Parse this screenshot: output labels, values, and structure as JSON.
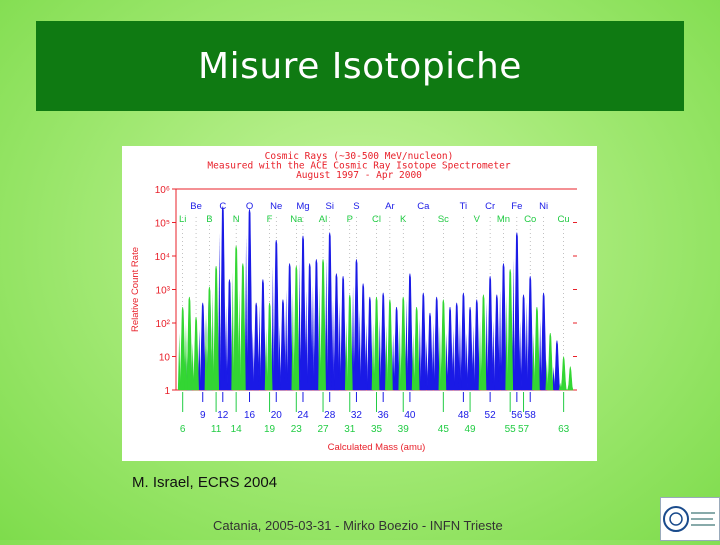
{
  "slide": {
    "title": "Misure Isotopiche",
    "caption": "M. Israel, ECRS 2004",
    "footer": "Catania, 2005-03-31 - Mirko Boezio - INFN Trieste",
    "logo_text": "INFN"
  },
  "colors": {
    "title_bg": "#0f7a12",
    "slide_bg": "#a6ea78",
    "plot_red": "#e8202a",
    "series_blue": "#1a1ae6",
    "series_green": "#33d633",
    "tick_blue": "#1a1ae6",
    "tick_green": "#22cc44"
  },
  "chart_data": {
    "type": "area",
    "title": [
      "Cosmic Rays (~30-500 MeV/nucleon)",
      "Measured with the ACE Cosmic Ray Isotope Spectrometer",
      "August 1997 - Apr 2000"
    ],
    "xlabel": "Calculated Mass (amu)",
    "ylabel": "Relative Count Rate",
    "xlim": [
      5,
      65
    ],
    "ylim": [
      1,
      1000000
    ],
    "yscale": "log",
    "y_ticks": [
      {
        "value": 1,
        "label": "1"
      },
      {
        "value": 10,
        "label": "10"
      },
      {
        "value": 100,
        "label": "10²"
      },
      {
        "value": 1000,
        "label": "10³"
      },
      {
        "value": 10000,
        "label": "10⁴"
      },
      {
        "value": 100000,
        "label": "10⁵"
      },
      {
        "value": 1000000,
        "label": "10⁶"
      }
    ],
    "element_labels_top": [
      {
        "symbol": "Be",
        "mass": 8
      },
      {
        "symbol": "C",
        "mass": 12
      },
      {
        "symbol": "O",
        "mass": 16
      },
      {
        "symbol": "Ne",
        "mass": 20
      },
      {
        "symbol": "Mg",
        "mass": 24
      },
      {
        "symbol": "Si",
        "mass": 28
      },
      {
        "symbol": "S",
        "mass": 32
      },
      {
        "symbol": "Ar",
        "mass": 37
      },
      {
        "symbol": "Ca",
        "mass": 42
      },
      {
        "symbol": "Ti",
        "mass": 48
      },
      {
        "symbol": "Cr",
        "mass": 52
      },
      {
        "symbol": "Fe",
        "mass": 56
      },
      {
        "symbol": "Ni",
        "mass": 60
      }
    ],
    "element_labels_bottom": [
      {
        "symbol": "Li",
        "mass": 6
      },
      {
        "symbol": "B",
        "mass": 10
      },
      {
        "symbol": "N",
        "mass": 14
      },
      {
        "symbol": "F",
        "mass": 19
      },
      {
        "symbol": "Na",
        "mass": 23
      },
      {
        "symbol": "Al",
        "mass": 27
      },
      {
        "symbol": "P",
        "mass": 31
      },
      {
        "symbol": "Cl",
        "mass": 35
      },
      {
        "symbol": "K",
        "mass": 39
      },
      {
        "symbol": "Sc",
        "mass": 45
      },
      {
        "symbol": "V",
        "mass": 50
      },
      {
        "symbol": "Mn",
        "mass": 54
      },
      {
        "symbol": "Co",
        "mass": 58
      },
      {
        "symbol": "Cu",
        "mass": 63
      }
    ],
    "mass_labels_top": [
      "9",
      "12",
      "16",
      "20",
      "24",
      "28",
      "32",
      "36",
      "40",
      "48",
      "52",
      "56",
      "58"
    ],
    "mass_labels_top_positions": [
      9,
      12,
      16,
      20,
      24,
      28,
      32,
      36,
      40,
      48,
      52,
      56,
      58
    ],
    "mass_labels_bottom": [
      "6",
      "11",
      "14",
      "19",
      "23",
      "27",
      "31",
      "35",
      "39",
      "45",
      "49",
      "55",
      "57",
      "63"
    ],
    "mass_labels_bottom_positions": [
      6,
      11,
      14,
      19,
      23,
      27,
      31,
      35,
      39,
      45,
      49,
      55,
      57,
      63
    ],
    "series": [
      {
        "color": "blue",
        "peaks": [
          {
            "mass": 7,
            "value": 200
          },
          {
            "mass": 9,
            "value": 400
          },
          {
            "mass": 10,
            "value": 800
          },
          {
            "mass": 12,
            "value": 300000
          },
          {
            "mass": 13,
            "value": 2000
          },
          {
            "mass": 16,
            "value": 250000
          },
          {
            "mass": 17,
            "value": 400
          },
          {
            "mass": 18,
            "value": 2000
          },
          {
            "mass": 20,
            "value": 30000
          },
          {
            "mass": 21,
            "value": 500
          },
          {
            "mass": 22,
            "value": 6000
          },
          {
            "mass": 24,
            "value": 40000
          },
          {
            "mass": 25,
            "value": 6000
          },
          {
            "mass": 26,
            "value": 8000
          },
          {
            "mass": 28,
            "value": 50000
          },
          {
            "mass": 29,
            "value": 3000
          },
          {
            "mass": 30,
            "value": 2500
          },
          {
            "mass": 32,
            "value": 8000
          },
          {
            "mass": 33,
            "value": 1500
          },
          {
            "mass": 34,
            "value": 600
          },
          {
            "mass": 36,
            "value": 800
          },
          {
            "mass": 38,
            "value": 300
          },
          {
            "mass": 40,
            "value": 3000
          },
          {
            "mass": 42,
            "value": 800
          },
          {
            "mass": 43,
            "value": 200
          },
          {
            "mass": 44,
            "value": 600
          },
          {
            "mass": 46,
            "value": 300
          },
          {
            "mass": 47,
            "value": 400
          },
          {
            "mass": 48,
            "value": 800
          },
          {
            "mass": 49,
            "value": 300
          },
          {
            "mass": 50,
            "value": 500
          },
          {
            "mass": 52,
            "value": 2500
          },
          {
            "mass": 53,
            "value": 700
          },
          {
            "mass": 54,
            "value": 6000
          },
          {
            "mass": 56,
            "value": 50000
          },
          {
            "mass": 57,
            "value": 700
          },
          {
            "mass": 58,
            "value": 2500
          },
          {
            "mass": 60,
            "value": 800
          },
          {
            "mass": 62,
            "value": 30
          }
        ]
      },
      {
        "color": "green",
        "peaks": [
          {
            "mass": 6,
            "value": 300
          },
          {
            "mass": 7,
            "value": 600
          },
          {
            "mass": 8,
            "value": 150
          },
          {
            "mass": 10,
            "value": 1200
          },
          {
            "mass": 11,
            "value": 5000
          },
          {
            "mass": 14,
            "value": 20000
          },
          {
            "mass": 15,
            "value": 6000
          },
          {
            "mass": 19,
            "value": 400
          },
          {
            "mass": 23,
            "value": 5000
          },
          {
            "mass": 27,
            "value": 8000
          },
          {
            "mass": 31,
            "value": 700
          },
          {
            "mass": 35,
            "value": 600
          },
          {
            "mass": 37,
            "value": 500
          },
          {
            "mass": 39,
            "value": 600
          },
          {
            "mass": 41,
            "value": 300
          },
          {
            "mass": 45,
            "value": 500
          },
          {
            "mass": 51,
            "value": 700
          },
          {
            "mass": 55,
            "value": 4000
          },
          {
            "mass": 59,
            "value": 300
          },
          {
            "mass": 61,
            "value": 50
          },
          {
            "mass": 63,
            "value": 10
          },
          {
            "mass": 64,
            "value": 5
          }
        ]
      }
    ]
  }
}
